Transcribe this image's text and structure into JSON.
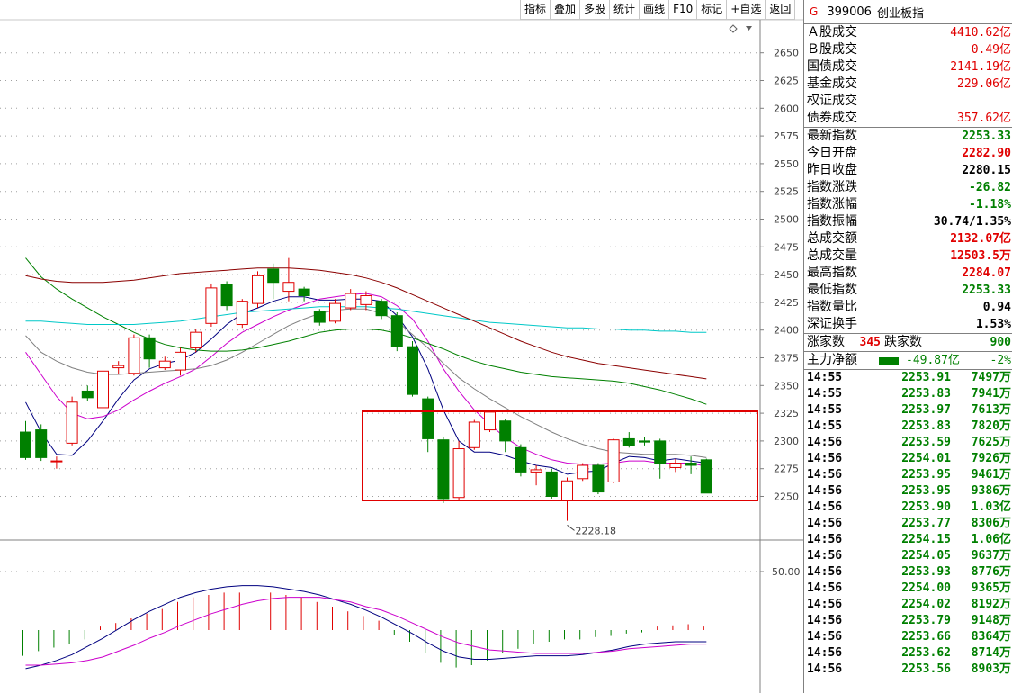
{
  "toolbar": [
    "指标",
    "叠加",
    "多股",
    "统计",
    "画线",
    "F10",
    "标记",
    "+自选",
    "返回"
  ],
  "index": {
    "marker": "G",
    "code": "399006",
    "name": "创业板指"
  },
  "turnover": [
    {
      "label": "Ａ股成交",
      "value": "4410.62亿"
    },
    {
      "label": "Ｂ股成交",
      "value": "0.49亿"
    },
    {
      "label": "国债成交",
      "value": "2141.19亿"
    },
    {
      "label": "基金成交",
      "value": "229.06亿"
    },
    {
      "label": "权证成交",
      "value": ""
    },
    {
      "label": "债券成交",
      "value": "357.62亿"
    }
  ],
  "stats": [
    {
      "label": "最新指数",
      "value": "2253.33",
      "color": "green"
    },
    {
      "label": "今日开盘",
      "value": "2282.90",
      "color": "red"
    },
    {
      "label": "昨日收盘",
      "value": "2280.15",
      "color": "black"
    },
    {
      "label": "指数涨跌",
      "value": "-26.82",
      "color": "green"
    },
    {
      "label": "指数涨幅",
      "value": "-1.18%",
      "color": "green"
    },
    {
      "label": "指数振幅",
      "value": "30.74/1.35%",
      "color": "black"
    },
    {
      "label": "总成交额",
      "value": "2132.07亿",
      "color": "red"
    },
    {
      "label": "总成交量",
      "value": "12503.5万",
      "color": "red"
    },
    {
      "label": "最高指数",
      "value": "2284.07",
      "color": "red"
    },
    {
      "label": "最低指数",
      "value": "2253.33",
      "color": "green"
    },
    {
      "label": "指数量比",
      "value": "0.94",
      "color": "black"
    },
    {
      "label": "深证换手",
      "value": "1.53%",
      "color": "black"
    }
  ],
  "advance_decline": {
    "up_label": "涨家数",
    "up": "345",
    "down_label": "跌家数",
    "down": "900"
  },
  "main_flow": {
    "label": "主力净额",
    "value": "-49.87亿",
    "pct": "-2%"
  },
  "ticks": [
    {
      "t": "14:55",
      "p": "2253.91",
      "v": "7497万"
    },
    {
      "t": "14:55",
      "p": "2253.83",
      "v": "7941万"
    },
    {
      "t": "14:55",
      "p": "2253.97",
      "v": "7613万"
    },
    {
      "t": "14:55",
      "p": "2253.83",
      "v": "7820万"
    },
    {
      "t": "14:56",
      "p": "2253.59",
      "v": "7625万"
    },
    {
      "t": "14:56",
      "p": "2254.01",
      "v": "7926万"
    },
    {
      "t": "14:56",
      "p": "2253.95",
      "v": "9461万"
    },
    {
      "t": "14:56",
      "p": "2253.95",
      "v": "9386万"
    },
    {
      "t": "14:56",
      "p": "2253.90",
      "v": "1.03亿"
    },
    {
      "t": "14:56",
      "p": "2253.77",
      "v": "8306万"
    },
    {
      "t": "14:56",
      "p": "2254.15",
      "v": "1.06亿"
    },
    {
      "t": "14:56",
      "p": "2254.05",
      "v": "9637万"
    },
    {
      "t": "14:56",
      "p": "2253.93",
      "v": "8776万"
    },
    {
      "t": "14:56",
      "p": "2254.00",
      "v": "9365万"
    },
    {
      "t": "14:56",
      "p": "2254.02",
      "v": "8192万"
    },
    {
      "t": "14:56",
      "p": "2253.79",
      "v": "9148万"
    },
    {
      "t": "14:56",
      "p": "2253.66",
      "v": "8364万"
    },
    {
      "t": "14:56",
      "p": "2253.62",
      "v": "8714万"
    },
    {
      "t": "14:56",
      "p": "2253.56",
      "v": "8903万"
    }
  ],
  "chart_data": {
    "type": "candlestick",
    "y_ticks": [
      2250,
      2275,
      2300,
      2325,
      2350,
      2375,
      2400,
      2425,
      2450,
      2475,
      2500,
      2525,
      2550,
      2575,
      2600,
      2625,
      2650
    ],
    "ylim": [
      2235,
      2665
    ],
    "low_annotation": "2228.18",
    "low_value": 2228.18,
    "candles": [
      {
        "o": 2308,
        "c": 2285,
        "h": 2318,
        "l": 2283
      },
      {
        "o": 2310,
        "c": 2285,
        "h": 2315,
        "l": 2282
      },
      {
        "o": 2282,
        "c": 2282,
        "h": 2286,
        "l": 2275
      },
      {
        "o": 2298,
        "c": 2335,
        "h": 2340,
        "l": 2296
      },
      {
        "o": 2345,
        "c": 2339,
        "h": 2350,
        "l": 2336
      },
      {
        "o": 2330,
        "c": 2363,
        "h": 2368,
        "l": 2328
      },
      {
        "o": 2366,
        "c": 2368,
        "h": 2372,
        "l": 2360
      },
      {
        "o": 2361,
        "c": 2393,
        "h": 2396,
        "l": 2359
      },
      {
        "o": 2393,
        "c": 2374,
        "h": 2396,
        "l": 2366
      },
      {
        "o": 2366,
        "c": 2372,
        "h": 2376,
        "l": 2364
      },
      {
        "o": 2364,
        "c": 2380,
        "h": 2384,
        "l": 2359
      },
      {
        "o": 2384,
        "c": 2398,
        "h": 2401,
        "l": 2380
      },
      {
        "o": 2406,
        "c": 2438,
        "h": 2442,
        "l": 2403
      },
      {
        "o": 2441,
        "c": 2422,
        "h": 2444,
        "l": 2418
      },
      {
        "o": 2405,
        "c": 2426,
        "h": 2428,
        "l": 2402
      },
      {
        "o": 2424,
        "c": 2449,
        "h": 2453,
        "l": 2420
      },
      {
        "o": 2455,
        "c": 2443,
        "h": 2460,
        "l": 2428
      },
      {
        "o": 2435,
        "c": 2443,
        "h": 2465,
        "l": 2426
      },
      {
        "o": 2437,
        "c": 2431,
        "h": 2439,
        "l": 2426
      },
      {
        "o": 2417,
        "c": 2407,
        "h": 2419,
        "l": 2404
      },
      {
        "o": 2408,
        "c": 2424,
        "h": 2428,
        "l": 2406
      },
      {
        "o": 2420,
        "c": 2433,
        "h": 2437,
        "l": 2418
      },
      {
        "o": 2423,
        "c": 2431,
        "h": 2435,
        "l": 2418
      },
      {
        "o": 2426,
        "c": 2413,
        "h": 2428,
        "l": 2410
      },
      {
        "o": 2413,
        "c": 2385,
        "h": 2416,
        "l": 2381
      },
      {
        "o": 2385,
        "c": 2342,
        "h": 2390,
        "l": 2340
      },
      {
        "o": 2338,
        "c": 2302,
        "h": 2340,
        "l": 2290
      },
      {
        "o": 2301,
        "c": 2248,
        "h": 2304,
        "l": 2244
      },
      {
        "o": 2249,
        "c": 2293,
        "h": 2300,
        "l": 2247
      },
      {
        "o": 2294,
        "c": 2317,
        "h": 2319,
        "l": 2292
      },
      {
        "o": 2310,
        "c": 2326,
        "h": 2327,
        "l": 2308
      },
      {
        "o": 2318,
        "c": 2300,
        "h": 2320,
        "l": 2290
      },
      {
        "o": 2294,
        "c": 2272,
        "h": 2297,
        "l": 2268
      },
      {
        "o": 2272,
        "c": 2274,
        "h": 2278,
        "l": 2260
      },
      {
        "o": 2272,
        "c": 2250,
        "h": 2275,
        "l": 2248
      },
      {
        "o": 2246,
        "c": 2264,
        "h": 2267,
        "l": 2228
      },
      {
        "o": 2266,
        "c": 2278,
        "h": 2280,
        "l": 2264
      },
      {
        "o": 2278,
        "c": 2254,
        "h": 2280,
        "l": 2252
      },
      {
        "o": 2263,
        "c": 2301,
        "h": 2302,
        "l": 2262
      },
      {
        "o": 2302,
        "c": 2296,
        "h": 2308,
        "l": 2294
      },
      {
        "o": 2300,
        "c": 2299,
        "h": 2304,
        "l": 2296
      },
      {
        "o": 2300,
        "c": 2280,
        "h": 2302,
        "l": 2266
      },
      {
        "o": 2276,
        "c": 2280,
        "h": 2284,
        "l": 2272
      },
      {
        "o": 2280,
        "c": 2278,
        "h": 2286,
        "l": 2270
      },
      {
        "o": 2283,
        "c": 2253,
        "h": 2284,
        "l": 2253
      }
    ],
    "ma_lines": [
      {
        "color": "#000080",
        "x0": -6,
        "values": [
          2335,
          2308,
          2288,
          2287,
          2300,
          2318,
          2338,
          2355,
          2365,
          2370,
          2373,
          2380,
          2392,
          2405,
          2415,
          2420,
          2426,
          2430,
          2430,
          2427,
          2427,
          2428,
          2428,
          2426,
          2413,
          2394,
          2365,
          2328,
          2300,
          2290,
          2290,
          2287,
          2282,
          2278,
          2276,
          2270,
          2272,
          2273,
          2280,
          2286,
          2285,
          2282,
          2284,
          2282,
          2280
        ]
      },
      {
        "color": "#cc00cc",
        "x0": -6,
        "values": [
          2380,
          2360,
          2340,
          2325,
          2320,
          2322,
          2328,
          2337,
          2345,
          2352,
          2358,
          2365,
          2376,
          2388,
          2398,
          2405,
          2412,
          2418,
          2423,
          2428,
          2430,
          2432,
          2433,
          2430,
          2422,
          2410,
          2390,
          2365,
          2345,
          2328,
          2315,
          2303,
          2294,
          2288,
          2283,
          2280,
          2279,
          2279,
          2280,
          2282,
          2282,
          2280,
          2280,
          2280,
          2277
        ]
      },
      {
        "color": "#808080",
        "x0": -6,
        "values": [
          2395,
          2380,
          2372,
          2366,
          2362,
          2360,
          2360,
          2361,
          2362,
          2363,
          2364,
          2365,
          2368,
          2373,
          2380,
          2388,
          2396,
          2404,
          2410,
          2415,
          2418,
          2419,
          2419,
          2415,
          2408,
          2396,
          2384,
          2370,
          2357,
          2347,
          2338,
          2330,
          2322,
          2315,
          2308,
          2302,
          2297,
          2293,
          2290,
          2289,
          2288,
          2288,
          2288,
          2287,
          2285
        ]
      },
      {
        "color": "#008000",
        "x0": -6,
        "values": [
          2465,
          2448,
          2437,
          2428,
          2420,
          2412,
          2405,
          2398,
          2392,
          2387,
          2384,
          2382,
          2381,
          2381,
          2382,
          2384,
          2387,
          2390,
          2394,
          2398,
          2400,
          2401,
          2401,
          2400,
          2397,
          2393,
          2388,
          2383,
          2377,
          2372,
          2368,
          2365,
          2362,
          2360,
          2358,
          2357,
          2356,
          2355,
          2354,
          2352,
          2349,
          2346,
          2342,
          2338,
          2333
        ]
      },
      {
        "color": "#00c8c8",
        "x0": -6,
        "values": [
          2408,
          2408,
          2407,
          2406,
          2405,
          2405,
          2405,
          2405,
          2406,
          2407,
          2408,
          2410,
          2412,
          2414,
          2416,
          2417,
          2418,
          2419,
          2420,
          2421,
          2421,
          2421,
          2421,
          2420,
          2419,
          2417,
          2415,
          2413,
          2411,
          2409,
          2407,
          2406,
          2405,
          2404,
          2403,
          2402,
          2402,
          2401,
          2401,
          2400,
          2400,
          2399,
          2399,
          2398,
          2398
        ]
      },
      {
        "color": "#8b0000",
        "x0": -6,
        "values": [
          2449,
          2446,
          2444,
          2443,
          2443,
          2443,
          2444,
          2445,
          2447,
          2449,
          2451,
          2452,
          2453,
          2454,
          2455,
          2456,
          2456,
          2456,
          2455,
          2454,
          2452,
          2450,
          2447,
          2443,
          2438,
          2432,
          2426,
          2420,
          2414,
          2408,
          2402,
          2396,
          2390,
          2385,
          2380,
          2376,
          2373,
          2370,
          2368,
          2366,
          2364,
          2362,
          2360,
          2358,
          2356
        ]
      }
    ],
    "macd": {
      "axis_label": "50.00",
      "axis_value": 50,
      "zero": 0,
      "ylim": [
        -40,
        60
      ],
      "bars": [
        -22,
        -18,
        -15,
        -12,
        -8,
        3,
        6,
        10,
        14,
        18,
        24,
        28,
        30,
        32,
        32,
        33,
        32,
        30,
        28,
        24,
        20,
        16,
        12,
        8,
        -4,
        -10,
        -20,
        -28,
        -32,
        -30,
        -26,
        -20,
        -16,
        -12,
        -10,
        -8,
        -8,
        -6,
        -5,
        -3,
        -2,
        3,
        4,
        5,
        3
      ],
      "dif": [
        -33,
        -30,
        -26,
        -21,
        -14,
        -7,
        1,
        9,
        16,
        22,
        28,
        32,
        35,
        37,
        38,
        38,
        37,
        35,
        33,
        30,
        26,
        22,
        17,
        11,
        4,
        -3,
        -11,
        -18,
        -23,
        -25,
        -25,
        -24,
        -23,
        -22,
        -22,
        -22,
        -21,
        -19,
        -17,
        -14,
        -12,
        -11,
        -10,
        -10,
        -10
      ],
      "dea": [
        -30,
        -30,
        -29,
        -28,
        -26,
        -23,
        -18,
        -13,
        -7,
        -2,
        4,
        9,
        14,
        18,
        22,
        25,
        27,
        28,
        28,
        28,
        26,
        24,
        20,
        17,
        12,
        6,
        0,
        -6,
        -11,
        -14,
        -17,
        -18,
        -19,
        -20,
        -20,
        -20,
        -20,
        -19,
        -18,
        -16,
        -15,
        -14,
        -13,
        -12,
        -12
      ]
    }
  }
}
